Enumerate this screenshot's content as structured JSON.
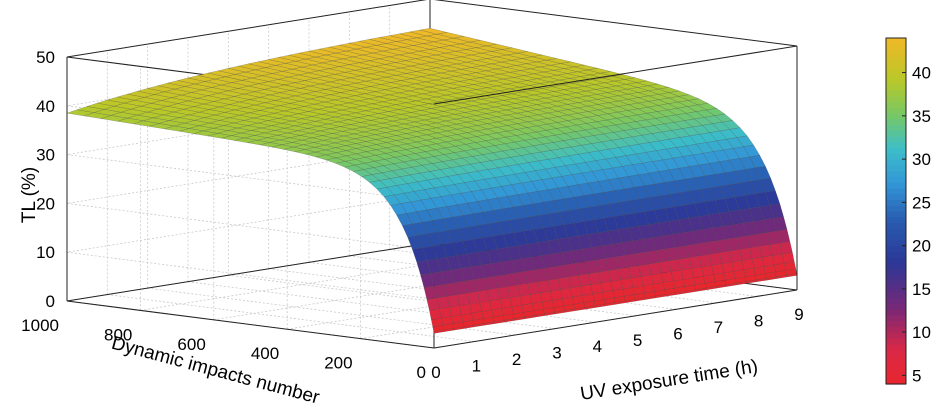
{
  "chart_data": {
    "type": "surface",
    "zlabel": "TL (%)",
    "xlabel": "UV exposure time (h)",
    "ylabel": "Dynamic impacts number",
    "x_ticks": [
      "0",
      "1",
      "2",
      "3",
      "4",
      "5",
      "6",
      "7",
      "8",
      "9"
    ],
    "y_ticks": [
      "0",
      "200",
      "400",
      "600",
      "800",
      "1000"
    ],
    "z_ticks": [
      "0",
      "10",
      "20",
      "30",
      "40",
      "50"
    ],
    "xlim": [
      0,
      9
    ],
    "ylim": [
      0,
      1000
    ],
    "zlim": [
      0,
      50
    ],
    "grid": true,
    "colorbar": {
      "ticks": [
        "5",
        "10",
        "15",
        "20",
        "25",
        "30",
        "35",
        "40"
      ],
      "range": [
        4,
        44
      ],
      "colormap": "parula-like"
    },
    "surface_summary": {
      "corner_values": [
        {
          "uv_h": 0,
          "impacts": 0,
          "tl": 3
        },
        {
          "uv_h": 9,
          "impacts": 0,
          "tl": 3
        },
        {
          "uv_h": 0,
          "impacts": 1000,
          "tl": 37
        },
        {
          "uv_h": 9,
          "impacts": 1000,
          "tl": 44
        }
      ],
      "note_values": [
        {
          "impacts": 100,
          "tl_at_0h": 23
        },
        {
          "impacts": 200,
          "tl_at_0h": 30
        },
        {
          "impacts": 400,
          "tl_at_0h": 34
        },
        {
          "impacts": 800,
          "tl_at_0h": 37
        }
      ]
    }
  }
}
